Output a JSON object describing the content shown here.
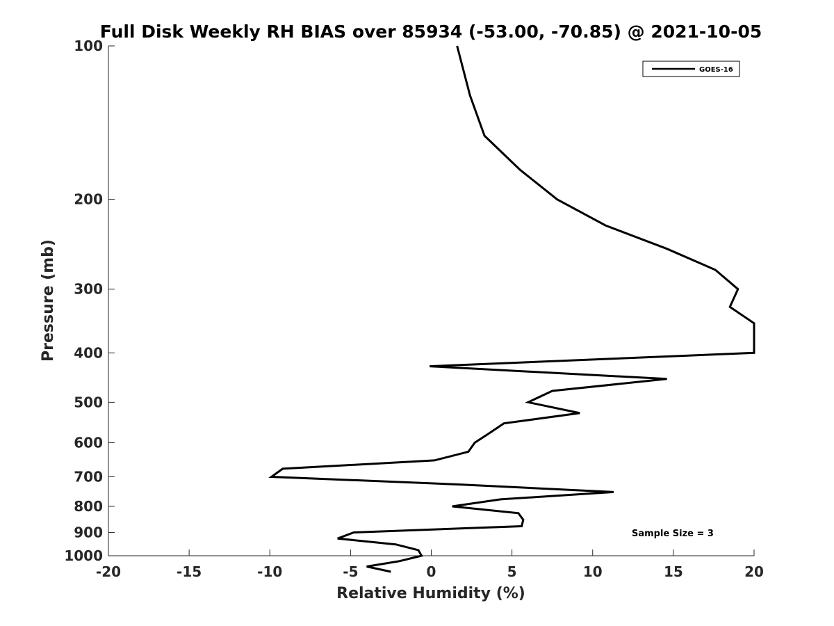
{
  "chart_data": {
    "type": "line",
    "title": "Full Disk Weekly RH BIAS over 85934 (-53.00, -70.85) @ 2021-10-05",
    "xlabel": "Relative Humidity (%)",
    "ylabel": "Pressure (mb)",
    "xlim": [
      -20,
      20
    ],
    "ylim": [
      100,
      1000
    ],
    "y_scale": "log",
    "y_reversed": true,
    "grid": false,
    "x_ticks": [
      -20,
      -15,
      -10,
      -5,
      0,
      5,
      10,
      15,
      20
    ],
    "x_tick_labels": [
      "-20",
      "-15",
      "-10",
      "-5",
      "0",
      "5",
      "10",
      "15",
      "20"
    ],
    "y_ticks": [
      100,
      200,
      300,
      400,
      500,
      600,
      700,
      800,
      900,
      1000
    ],
    "y_tick_labels": [
      "100",
      "200",
      "300",
      "400",
      "500",
      "600",
      "700",
      "800",
      "900",
      "1000"
    ],
    "legend": {
      "position": "top-right",
      "entries": [
        "GOES-16"
      ]
    },
    "annotation": "Sample Size = 3",
    "series": [
      {
        "name": "GOES-16",
        "color": "#000000",
        "points": [
          [
            1.6,
            100
          ],
          [
            2.4,
            125
          ],
          [
            3.3,
            150
          ],
          [
            5.5,
            175
          ],
          [
            7.8,
            200
          ],
          [
            10.8,
            225
          ],
          [
            14.6,
            250
          ],
          [
            17.6,
            275
          ],
          [
            19.0,
            300
          ],
          [
            18.5,
            325
          ],
          [
            20.0,
            350
          ],
          [
            20.0,
            400
          ],
          [
            -0.1,
            425
          ],
          [
            14.6,
            450
          ],
          [
            7.5,
            475
          ],
          [
            6.0,
            500
          ],
          [
            9.2,
            525
          ],
          [
            4.5,
            550
          ],
          [
            3.6,
            575
          ],
          [
            2.7,
            600
          ],
          [
            2.3,
            625
          ],
          [
            0.2,
            650
          ],
          [
            -9.2,
            675
          ],
          [
            -9.9,
            700
          ],
          [
            1.8,
            725
          ],
          [
            11.3,
            750
          ],
          [
            4.3,
            775
          ],
          [
            1.3,
            800
          ],
          [
            5.4,
            825
          ],
          [
            5.7,
            850
          ],
          [
            5.6,
            875
          ],
          [
            -4.8,
            900
          ],
          [
            -5.8,
            925
          ],
          [
            -2.2,
            950
          ],
          [
            -0.8,
            975
          ],
          [
            -0.6,
            1000
          ],
          [
            -2.0,
            1025
          ],
          [
            -4.0,
            1050
          ],
          [
            -2.5,
            1075
          ]
        ]
      }
    ]
  }
}
